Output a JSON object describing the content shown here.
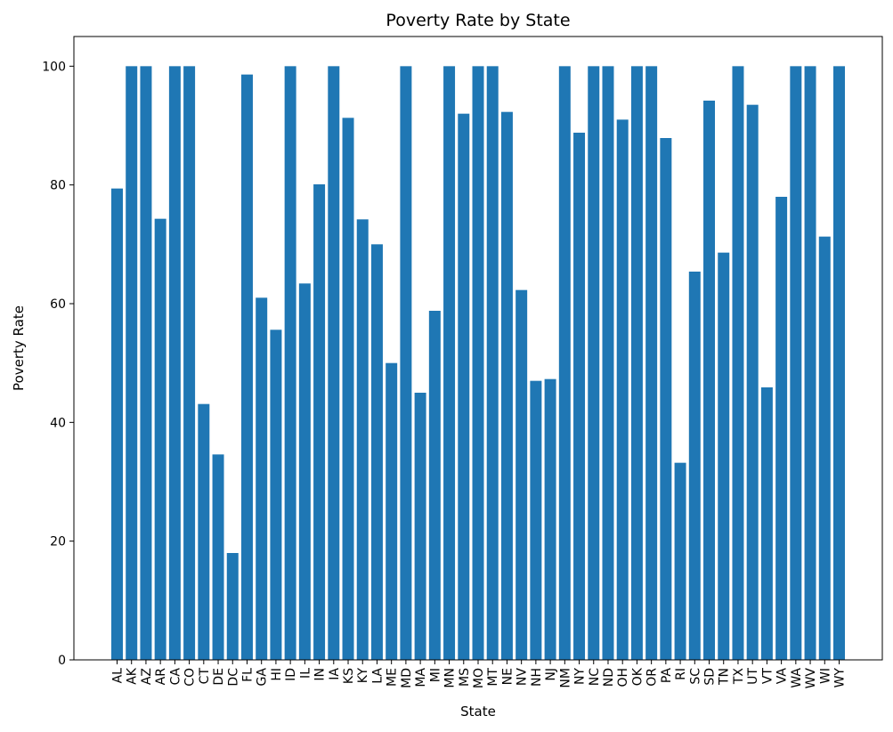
{
  "chart_data": {
    "type": "bar",
    "title": "Poverty Rate by State",
    "xlabel": "State",
    "ylabel": "Poverty Rate",
    "ylim": [
      0,
      105
    ],
    "yticks": [
      "0",
      "20",
      "40",
      "60",
      "80",
      "100"
    ],
    "grid": false,
    "bar_color": "#1f77b4",
    "categories": [
      "AL",
      "AK",
      "AZ",
      "AR",
      "CA",
      "CO",
      "CT",
      "DE",
      "DC",
      "FL",
      "GA",
      "HI",
      "ID",
      "IL",
      "IN",
      "IA",
      "KS",
      "KY",
      "LA",
      "ME",
      "MD",
      "MA",
      "MI",
      "MN",
      "MS",
      "MO",
      "MT",
      "NE",
      "NV",
      "NH",
      "NJ",
      "NM",
      "NY",
      "NC",
      "ND",
      "OH",
      "OK",
      "OR",
      "PA",
      "RI",
      "SC",
      "SD",
      "TN",
      "TX",
      "UT",
      "VT",
      "VA",
      "WA",
      "WV",
      "WI",
      "WY"
    ],
    "values": [
      79.4,
      100,
      100,
      74.3,
      100,
      100,
      43.1,
      34.6,
      18.0,
      98.6,
      61.0,
      55.6,
      100,
      63.4,
      80.1,
      100,
      91.3,
      74.2,
      70.0,
      50.0,
      100,
      45.0,
      58.8,
      100,
      92.0,
      100,
      100,
      92.3,
      62.3,
      47.0,
      47.3,
      100,
      88.8,
      100,
      100,
      91.0,
      100,
      100,
      87.9,
      33.2,
      65.4,
      94.2,
      68.6,
      100,
      93.5,
      45.9,
      78.0,
      100,
      100,
      71.3,
      100
    ]
  }
}
